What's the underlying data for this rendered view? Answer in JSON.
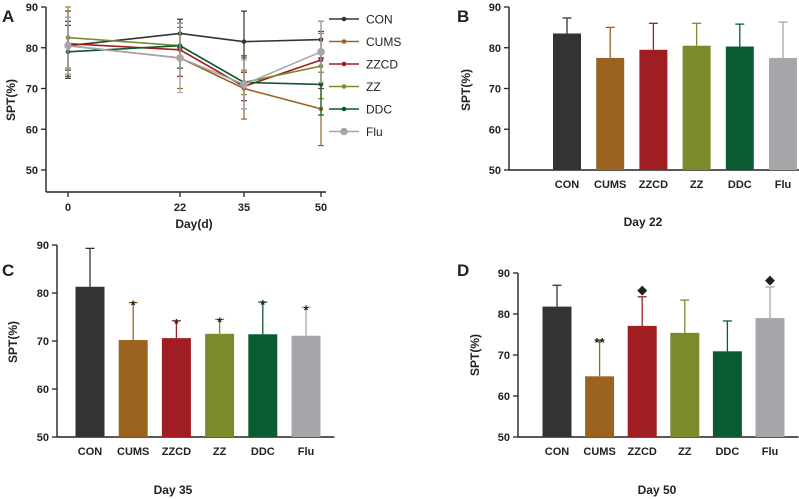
{
  "colors": {
    "CON": "#333333",
    "CUMS": "#9a6420",
    "ZZCD": "#a01d22",
    "ZZ": "#7d8a2c",
    "DDC": "#0b5b30",
    "Flu": "#a6a6ab",
    "axis": "#222222"
  },
  "chart_data": [
    {
      "panel": "A",
      "type": "line",
      "title": "",
      "xlabel": "Day(d)",
      "ylabel": "SPT(%)",
      "x": [
        0,
        22,
        35,
        50
      ],
      "x_ticks": [
        "0",
        "22",
        "35",
        "50"
      ],
      "y_ticks": [
        "50",
        "60",
        "70",
        "80",
        "90"
      ],
      "ylim": [
        50,
        90
      ],
      "legend_position": "right",
      "series": [
        {
          "name": "CON",
          "values": [
            80.5,
            83.5,
            81.5,
            82
          ],
          "errors": [
            6,
            3.5,
            7.5,
            4.5
          ],
          "marker": "dot"
        },
        {
          "name": "CUMS",
          "values": [
            80.5,
            77.5,
            70,
            65
          ],
          "errors": [
            7,
            7.5,
            7.5,
            9
          ],
          "marker": "dot"
        },
        {
          "name": "ZZCD",
          "values": [
            81,
            79.5,
            70.5,
            77
          ],
          "errors": [
            8,
            6.5,
            3.5,
            7
          ],
          "marker": "dot"
        },
        {
          "name": "ZZ",
          "values": [
            82.5,
            80.5,
            71.5,
            75.5
          ],
          "errors": [
            7.5,
            5.5,
            3,
            8
          ],
          "marker": "dot"
        },
        {
          "name": "DDC",
          "values": [
            79,
            80.5,
            71.5,
            71
          ],
          "errors": [
            6.5,
            5.5,
            6.5,
            7.5
          ],
          "marker": "dot"
        },
        {
          "name": "Flu",
          "values": [
            80.5,
            77.5,
            71,
            79
          ],
          "errors": [
            7,
            8.5,
            6,
            7.5
          ],
          "marker": "large-dot"
        }
      ]
    },
    {
      "panel": "B",
      "type": "bar",
      "title": "Day 22",
      "xlabel": "Day 22",
      "ylabel": "SPT(%)",
      "categories": [
        "CON",
        "CUMS",
        "ZZCD",
        "ZZ",
        "DDC",
        "Flu"
      ],
      "values": [
        83.5,
        77.5,
        79.5,
        80.5,
        80.3,
        77.5
      ],
      "errors": [
        3.8,
        7.5,
        6.5,
        5.5,
        5.5,
        8.8
      ],
      "annotations": [
        "",
        "",
        "",
        "",
        "",
        ""
      ],
      "y_ticks": [
        "50",
        "60",
        "70",
        "80",
        "90"
      ],
      "ylim": [
        50,
        90
      ]
    },
    {
      "panel": "C",
      "type": "bar",
      "title": "Day 35",
      "xlabel": "Day 35",
      "ylabel": "SPT(%)",
      "categories": [
        "CON",
        "CUMS",
        "ZZCD",
        "ZZ",
        "DDC",
        "Flu"
      ],
      "values": [
        81.3,
        70.2,
        70.6,
        71.5,
        71.4,
        71.1
      ],
      "errors": [
        8,
        7.8,
        3.6,
        3,
        6.7,
        5.9
      ],
      "annotations": [
        "",
        "*",
        "*",
        "*",
        "*",
        "*"
      ],
      "y_ticks": [
        "50",
        "60",
        "70",
        "80",
        "90"
      ],
      "ylim": [
        50,
        90
      ]
    },
    {
      "panel": "D",
      "type": "bar",
      "title": "Day 50",
      "xlabel": "Day 50",
      "ylabel": "SPT(%)",
      "categories": [
        "CON",
        "CUMS",
        "ZZCD",
        "ZZ",
        "DDC",
        "Flu"
      ],
      "values": [
        81.8,
        64.8,
        77.1,
        75.4,
        70.9,
        79
      ],
      "errors": [
        5.2,
        8.8,
        7.1,
        8,
        7.4,
        7.6
      ],
      "annotations": [
        "",
        "**",
        "◆",
        "",
        "",
        "◆"
      ],
      "y_ticks": [
        "50",
        "60",
        "70",
        "80",
        "90"
      ],
      "ylim": [
        50,
        90
      ]
    }
  ]
}
